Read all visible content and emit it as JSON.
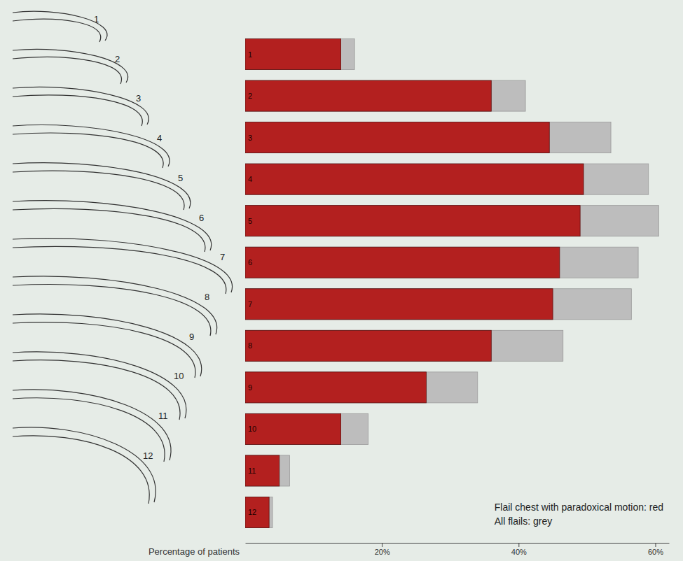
{
  "chart_data": {
    "type": "bar",
    "orientation": "horizontal",
    "x_label": "Percentage of patients",
    "categories": [
      "1",
      "2",
      "3",
      "4",
      "5",
      "6",
      "7",
      "8",
      "9",
      "10",
      "11",
      "12"
    ],
    "series": [
      {
        "name": "Flail chest with paradoxical motion: red",
        "color": "#b3201f",
        "values": [
          14,
          36,
          44.5,
          49.5,
          49,
          46,
          45,
          36,
          26.5,
          14,
          5,
          3.5
        ]
      },
      {
        "name": "All flails: grey",
        "color": "#bdbdbd",
        "values": [
          16,
          41,
          53.5,
          59,
          60.5,
          57.5,
          56.5,
          46.5,
          34,
          18,
          6.5,
          4
        ]
      }
    ],
    "xlim": [
      0,
      62
    ],
    "xticks": [
      {
        "value": 20,
        "label": "20%"
      },
      {
        "value": 40,
        "label": "40%"
      },
      {
        "value": 60,
        "label": "60%"
      }
    ],
    "grid": false,
    "legend": "bottom-right"
  }
}
